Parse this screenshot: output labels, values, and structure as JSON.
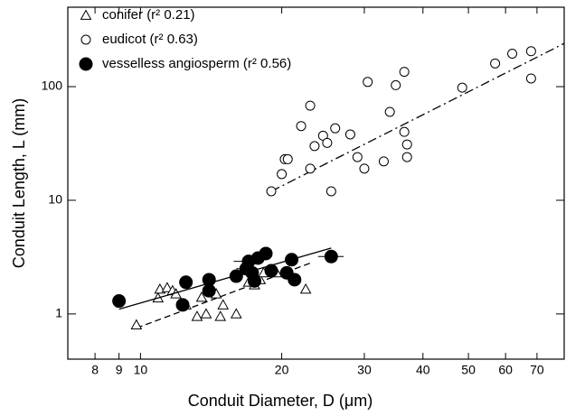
{
  "chart_data": {
    "type": "scatter",
    "xlabel": "Conduit Diameter, D (μm)",
    "ylabel": "Conduit Length, L (mm)",
    "xscale": "log",
    "yscale": "log",
    "xlim": [
      7,
      80
    ],
    "ylim": [
      0.4,
      500
    ],
    "xticks": [
      8,
      9,
      10,
      20,
      30,
      40,
      50,
      60,
      70
    ],
    "yticks": [
      1,
      10,
      100
    ],
    "legend": "upper left",
    "series": [
      {
        "name": "conifer (r² 0.21)",
        "color": "#000000",
        "marker": "triangle-open",
        "line_style": "dashed",
        "x": [
          9.8,
          11,
          11.4,
          11.7,
          11.9,
          10.9,
          12.5,
          13.5,
          13.2,
          13.8,
          14.8,
          15,
          16,
          17.5,
          18,
          18.3,
          19.5,
          22.5,
          17,
          14.5
        ],
        "values": [
          0.8,
          1.65,
          1.7,
          1.6,
          1.5,
          1.38,
          1.2,
          1.4,
          0.95,
          1.0,
          0.95,
          1.2,
          1.0,
          1.8,
          2.0,
          2.3,
          2.3,
          1.65,
          1.9,
          1.5
        ],
        "fit_x": [
          9.8,
          23
        ],
        "fit_values": [
          0.75,
          2.8
        ]
      },
      {
        "name": "eudicot (r² 0.63)",
        "color": "#000000",
        "marker": "circle-open",
        "line_style": "dashdot",
        "x": [
          19,
          20,
          20.3,
          20.6,
          22,
          23,
          23.5,
          23,
          24.5,
          25,
          25.5,
          26,
          28,
          29,
          30,
          30.5,
          33,
          34,
          35,
          36.5,
          36.5,
          37,
          37,
          48.5,
          57,
          62,
          68,
          68
        ],
        "values": [
          12,
          17,
          23,
          23,
          45,
          19,
          30,
          68,
          37,
          32,
          12,
          43,
          38,
          24,
          19,
          110,
          22,
          60,
          103,
          135,
          40,
          31,
          24,
          98,
          160,
          195,
          205,
          118
        ],
        "fit_x": [
          19,
          80
        ],
        "fit_values": [
          12,
          240
        ]
      },
      {
        "name": "vesselless angiosperm (r² 0.56)",
        "color": "#000000",
        "marker": "circle-filled",
        "line_style": "solid",
        "x": [
          9,
          12.5,
          12.3,
          14,
          14,
          16,
          16.8,
          17,
          17.3,
          17.5,
          17.8,
          18.5,
          19,
          20.5,
          21,
          21.3,
          25.5
        ],
        "values": [
          1.3,
          1.9,
          1.2,
          2.0,
          1.6,
          2.15,
          2.5,
          2.9,
          2.3,
          1.95,
          3.1,
          3.4,
          2.4,
          2.3,
          3.0,
          2.0,
          3.2
        ],
        "xerr": [
          0.2,
          0.3,
          0.3,
          0.3,
          0.3,
          0.4,
          0.8,
          1.2,
          0.5,
          0.5,
          0.8,
          0.6,
          0.5,
          0.6,
          0.7,
          0.4,
          1.6
        ],
        "fit_x": [
          9,
          25.5
        ],
        "fit_values": [
          1.1,
          3.8
        ]
      }
    ]
  }
}
